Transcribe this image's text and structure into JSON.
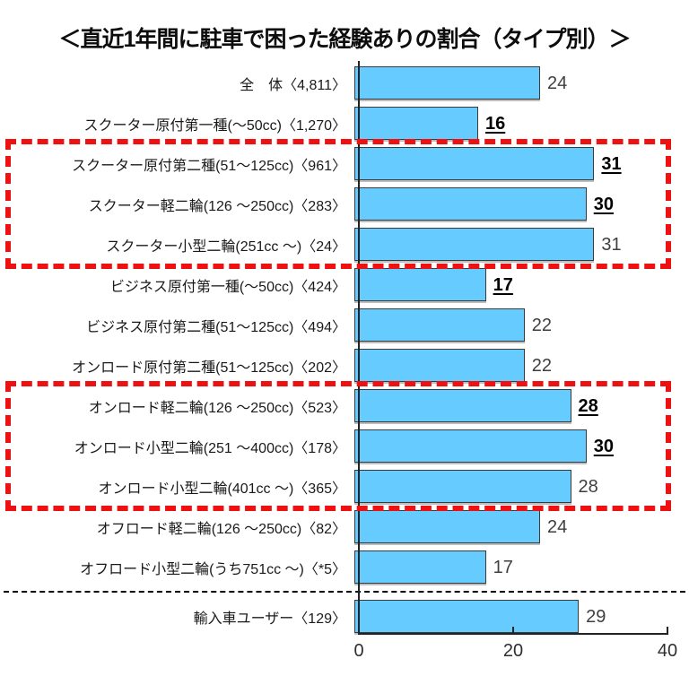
{
  "title": "＜直近1年間に駐車で困った経験ありの割合（タイプ別）＞",
  "chart_data": {
    "type": "bar",
    "orientation": "horizontal",
    "title": "＜直近1年間に駐車で困った経験ありの割合（タイプ別）＞",
    "xlabel": "",
    "ylabel": "",
    "xlim": [
      0,
      40
    ],
    "x_ticks": [
      0,
      20,
      40
    ],
    "grid": false,
    "legend": null,
    "categories": [
      "全　体〈4,811〉",
      "スクーター原付第一種(～50cc)〈1,270〉",
      "スクーター原付第二種(51～125cc)〈961〉",
      "スクーター軽二輪(126 ～250cc)〈283〉",
      "スクーター小型二輪(251cc ～)〈24〉",
      "ビジネス原付第一種(～50cc)〈424〉",
      "ビジネス原付第二種(51～125cc)〈494〉",
      "オンロード原付第二種(51～125cc)〈202〉",
      "オンロード軽二輪(126 ～250cc)〈523〉",
      "オンロード小型二輪(251 ～400cc)〈178〉",
      "オンロード小型二輪(401cc ～)〈365〉",
      "オフロード軽二輪(126 ～250cc)〈82〉",
      "オフロード小型二輪(うち751cc ～)〈*5〉",
      "輸入車ユーザー〈129〉"
    ],
    "values": [
      24,
      16,
      31,
      30,
      31,
      17,
      22,
      22,
      28,
      30,
      28,
      24,
      17,
      29
    ],
    "underlined_values": [
      false,
      true,
      true,
      true,
      false,
      true,
      false,
      false,
      true,
      true,
      false,
      false,
      false,
      false
    ],
    "separator_index": 13,
    "highlight_groups": [
      {
        "start": 2,
        "count": 3
      },
      {
        "start": 8,
        "count": 3
      }
    ],
    "bar_color": "#66CCFF",
    "bar_border_color": "#3A3A3A",
    "highlight_color": "#EE1111"
  }
}
